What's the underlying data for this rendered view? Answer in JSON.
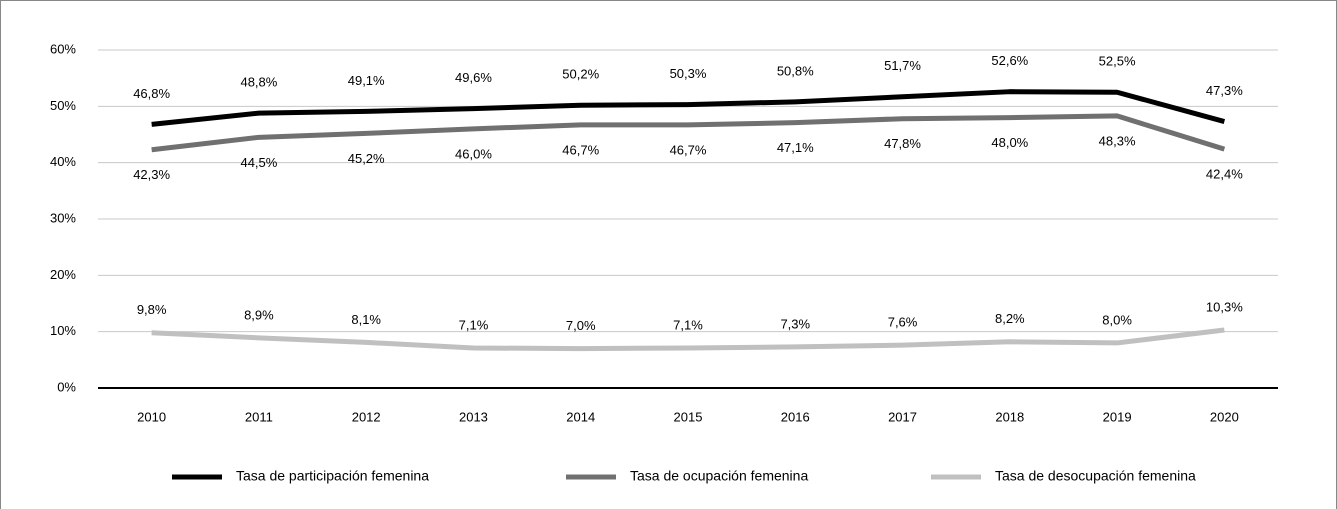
{
  "chart_data": {
    "type": "line",
    "categories": [
      "2010",
      "2011",
      "2012",
      "2013",
      "2014",
      "2015",
      "2016",
      "2017",
      "2018",
      "2019",
      "2020"
    ],
    "series": [
      {
        "name": "Tasa de participación femenina",
        "color": "#000000",
        "values": [
          46.8,
          48.8,
          49.1,
          49.6,
          50.2,
          50.3,
          50.8,
          51.7,
          52.6,
          52.5,
          47.3
        ],
        "value_labels": [
          "46,8%",
          "48,8%",
          "49,1%",
          "49,6%",
          "50,2%",
          "50,3%",
          "50,8%",
          "51,7%",
          "52,6%",
          "52,5%",
          "47,3%"
        ]
      },
      {
        "name": "Tasa de ocupación femenina",
        "color": "#707070",
        "values": [
          42.3,
          44.5,
          45.2,
          46.0,
          46.7,
          46.7,
          47.1,
          47.8,
          48.0,
          48.3,
          42.4
        ],
        "value_labels": [
          "42,3%",
          "44,5%",
          "45,2%",
          "46,0%",
          "46,7%",
          "46,7%",
          "47,1%",
          "47,8%",
          "48,0%",
          "48,3%",
          "42,4%"
        ]
      },
      {
        "name": "Tasa de desocupación femenina",
        "color": "#c0c0c0",
        "values": [
          9.8,
          8.9,
          8.1,
          7.1,
          7.0,
          7.1,
          7.3,
          7.6,
          8.2,
          8.0,
          10.3
        ],
        "value_labels": [
          "9,8%",
          "8,9%",
          "8,1%",
          "7,1%",
          "7,0%",
          "7,1%",
          "7,3%",
          "7,6%",
          "8,2%",
          "8,0%",
          "10,3%"
        ]
      }
    ],
    "ylim": [
      0,
      60
    ],
    "yticks": [
      {
        "value": 0,
        "label": "0%"
      },
      {
        "value": 10,
        "label": "10%"
      },
      {
        "value": 20,
        "label": "20%"
      },
      {
        "value": 30,
        "label": "30%"
      },
      {
        "value": 40,
        "label": "40%"
      },
      {
        "value": 50,
        "label": "50%"
      },
      {
        "value": 60,
        "label": "60%"
      }
    ],
    "grid": true,
    "legend": "bottom"
  }
}
